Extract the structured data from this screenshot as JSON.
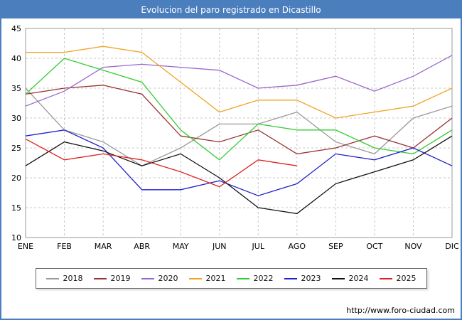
{
  "title": "Evolucion del paro registrado en Dicastillo",
  "footer": {
    "url": "http://www.foro-ciudad.com"
  },
  "colors": {
    "title_bar": "#4a7ebc",
    "frame_border": "#4a7ebc",
    "grid": "#c8c8c8",
    "plot_border": "#999999",
    "axis_text": "#000000"
  },
  "chart_data": {
    "type": "line",
    "title": "Evolucion del paro registrado en Dicastillo",
    "xlabel": "",
    "ylabel": "",
    "ylim": [
      10,
      45
    ],
    "ytick_step": 5,
    "grid": true,
    "legend_position": "bottom",
    "categories": [
      "ENE",
      "FEB",
      "MAR",
      "ABR",
      "MAY",
      "JUN",
      "JUL",
      "AGO",
      "SEP",
      "OCT",
      "NOV",
      "DIC"
    ],
    "series": [
      {
        "name": "2018",
        "color": "#999999",
        "values": [
          35,
          28,
          26,
          22,
          25,
          29,
          29,
          31,
          26,
          24,
          30,
          32
        ]
      },
      {
        "name": "2019",
        "color": "#993333",
        "values": [
          34,
          35,
          35.5,
          34,
          27,
          26,
          28,
          24,
          25,
          27,
          25,
          30
        ]
      },
      {
        "name": "2020",
        "color": "#9966cc",
        "values": [
          32,
          34.5,
          38.5,
          39,
          38.5,
          38,
          35,
          35.5,
          37,
          34.5,
          37,
          40.5
        ]
      },
      {
        "name": "2021",
        "color": "#efa320",
        "values": [
          41,
          41,
          42,
          41,
          36,
          31,
          33,
          33,
          30,
          31,
          32,
          35
        ]
      },
      {
        "name": "2022",
        "color": "#33cc33",
        "values": [
          34,
          40,
          38,
          36,
          28,
          23,
          29,
          28,
          28,
          25,
          24,
          28
        ]
      },
      {
        "name": "2023",
        "color": "#2222cc",
        "values": [
          27,
          28,
          25,
          18,
          18,
          19.5,
          17,
          19,
          24,
          23,
          25,
          22
        ]
      },
      {
        "name": "2024",
        "color": "#111111",
        "values": [
          22,
          26,
          24.5,
          22,
          24,
          20,
          15,
          14,
          19,
          21,
          23,
          27
        ]
      },
      {
        "name": "2025",
        "color": "#dd2222",
        "values": [
          26.5,
          23,
          24,
          23,
          21,
          18.5,
          23,
          22
        ]
      }
    ]
  }
}
